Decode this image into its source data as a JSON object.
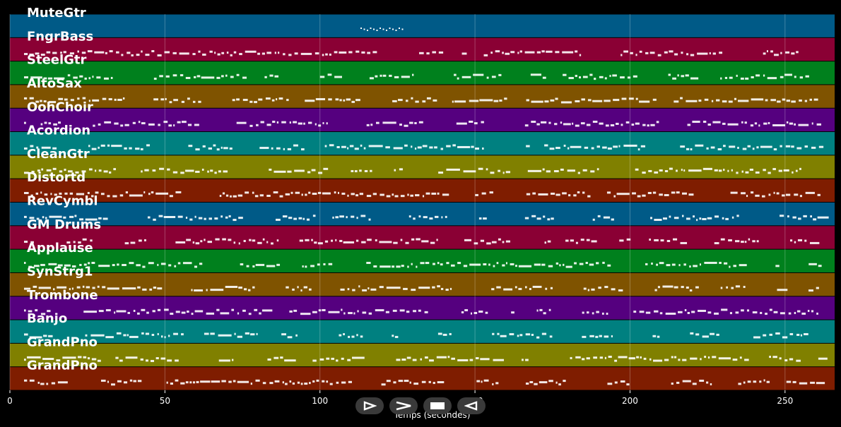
{
  "window": {
    "title": ""
  },
  "tracks": [
    {
      "name": "MuteGtr",
      "color": "#005a87"
    },
    {
      "name": "FngrBass",
      "color": "#8a0034"
    },
    {
      "name": "SteelGtr",
      "color": "#00801d"
    },
    {
      "name": "AltoSax",
      "color": "#7f5300"
    },
    {
      "name": "OohChoir",
      "color": "#55007f"
    },
    {
      "name": "Acordion",
      "color": "#008080"
    },
    {
      "name": "CleanGtr",
      "color": "#808000"
    },
    {
      "name": "Distortd",
      "color": "#7f1d00"
    },
    {
      "name": "RevCymbl",
      "color": "#005a87"
    },
    {
      "name": "GM Drums",
      "color": "#8a0034"
    },
    {
      "name": "Applause",
      "color": "#00801d"
    },
    {
      "name": "SynStrg1",
      "color": "#7f5300"
    },
    {
      "name": "Trombone",
      "color": "#55007f"
    },
    {
      "name": "Banjo",
      "color": "#008080"
    },
    {
      "name": "GrandPno",
      "color": "#808000"
    },
    {
      "name": "GrandPno",
      "color": "#7f1d00"
    }
  ],
  "chart_data": {
    "type": "piano-roll",
    "xlabel": "Temps (secondes)",
    "xlim": [
      0,
      266
    ],
    "xticks": [
      0,
      50,
      100,
      150,
      200,
      250
    ],
    "tick_labels": [
      "0",
      "50",
      "100",
      "150",
      "200",
      "250"
    ],
    "grid": true,
    "note_color": "#ffffff"
  },
  "transport": {
    "play_icon": "play-outline-icon",
    "forward_icon": "chevron-right-icon",
    "stop_icon": "stop-icon",
    "back_icon": "back-icon"
  }
}
